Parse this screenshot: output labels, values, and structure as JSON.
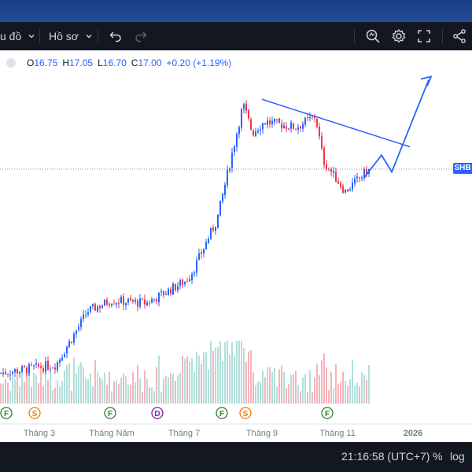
{
  "toolbar": {
    "chart_menu_label": "u đồ",
    "profile_menu_label": "Hồ sơ",
    "icons": [
      "chevron-down-icon",
      "undo-icon",
      "redo-icon",
      "quick-search-icon",
      "settings-icon",
      "fullscreen-icon",
      "share-icon"
    ]
  },
  "legend": {
    "open_key": "O",
    "open_value": "16.75",
    "high_key": "H",
    "high_value": "17.05",
    "low_key": "L",
    "low_value": "16.70",
    "close_key": "C",
    "close_value": "17.00",
    "change": "+0.20 (+1.19%)"
  },
  "symbol_tag": "SHB",
  "status_bar": {
    "clock": "21:16:58 (UTC+7)",
    "percent_label": "%",
    "log_label": "log"
  },
  "colors": {
    "up": "#2962ff",
    "down": "#f23645",
    "volume_up": "#b2dfdb",
    "volume_down": "#f7b3b9",
    "drawing": "#2962ff",
    "toolbar_bg": "#131722",
    "top_strip": "#1c3f86"
  },
  "chart_data": {
    "type": "candlestick",
    "x_ticks": [
      "Tháng 3",
      "Tháng Năm",
      "Tháng 7",
      "Tháng 9",
      "Tháng 11",
      "2026"
    ],
    "last_price": 17.0,
    "events": [
      {
        "label": "F",
        "type": "dividend"
      },
      {
        "label": "S",
        "type": "split"
      },
      {
        "label": "F",
        "type": "dividend"
      },
      {
        "label": "D",
        "type": "dividend"
      },
      {
        "label": "F",
        "type": "dividend"
      },
      {
        "label": "S",
        "type": "split"
      },
      {
        "label": "F",
        "type": "dividend"
      }
    ],
    "key_prices": [
      {
        "period": "start",
        "price": 9.7
      },
      {
        "period": "Tháng 3",
        "price": 10.0
      },
      {
        "period": "early Tháng Năm",
        "price": 11.4
      },
      {
        "period": "Tháng Năm",
        "price": 11.9
      },
      {
        "period": "June",
        "price": 12.3
      },
      {
        "period": "late June",
        "price": 12.2
      },
      {
        "period": "early Tháng 7",
        "price": 13.0
      },
      {
        "period": "mid Tháng 7",
        "price": 13.4
      },
      {
        "period": "late Tháng 7",
        "price": 15.2
      },
      {
        "period": "Aug peak",
        "price": 19.3
      },
      {
        "period": "late Aug",
        "price": 18.3
      },
      {
        "period": "Tháng 9",
        "price": 18.7
      },
      {
        "period": "late Sep",
        "price": 18.5
      },
      {
        "period": "Oct peak",
        "price": 18.9
      },
      {
        "period": "Tháng 11",
        "price": 17.3
      },
      {
        "period": "Nov low",
        "price": 16.2
      },
      {
        "period": "last",
        "price": 17.0
      }
    ],
    "drawings": [
      {
        "type": "trendline",
        "from": {
          "period": "Aug peak",
          "price": 19.5
        },
        "to": {
          "period": "early Dec",
          "price": 17.8
        }
      },
      {
        "type": "projection_path",
        "points": [
          16.7,
          17.5,
          16.9,
          20.2
        ]
      }
    ],
    "grid": false
  }
}
